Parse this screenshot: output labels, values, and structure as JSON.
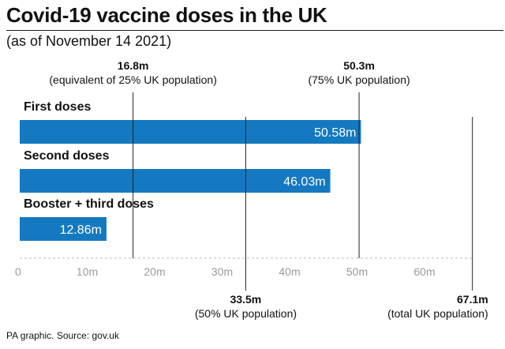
{
  "title": "Covid-19 vaccine doses in the UK",
  "subtitle": "(as of November 14 2021)",
  "source": "PA graphic. Source: gov.uk",
  "colors": {
    "bar": "#1479c0",
    "reference_line": "#222222",
    "axis": "#bbbbbb",
    "tick_text": "#999999"
  },
  "chart_data": {
    "type": "bar",
    "orientation": "horizontal",
    "unit": "m",
    "categories": [
      "First doses",
      "Second doses",
      "Booster + third doses"
    ],
    "values": [
      50.58,
      46.03,
      12.86
    ],
    "value_labels": [
      "50.58m",
      "46.03m",
      "12.86m"
    ],
    "xlim": [
      0,
      67.1
    ],
    "xticks": [
      0,
      10,
      20,
      30,
      40,
      50,
      60
    ],
    "xtick_labels": [
      "0",
      "10m",
      "20m",
      "30m",
      "40m",
      "50m",
      "60m"
    ],
    "grid": false,
    "reference_lines": [
      {
        "value": 16.8,
        "label": "16.8m",
        "description": "(equivalent of 25% UK population)",
        "placement": "top"
      },
      {
        "value": 50.3,
        "label": "50.3m",
        "description": "(75% UK population)",
        "placement": "top"
      },
      {
        "value": 33.5,
        "label": "33.5m",
        "description": "(50% UK population)",
        "placement": "bottom"
      },
      {
        "value": 67.1,
        "label": "67.1m",
        "description": "(total UK population)",
        "placement": "bottom"
      }
    ]
  }
}
